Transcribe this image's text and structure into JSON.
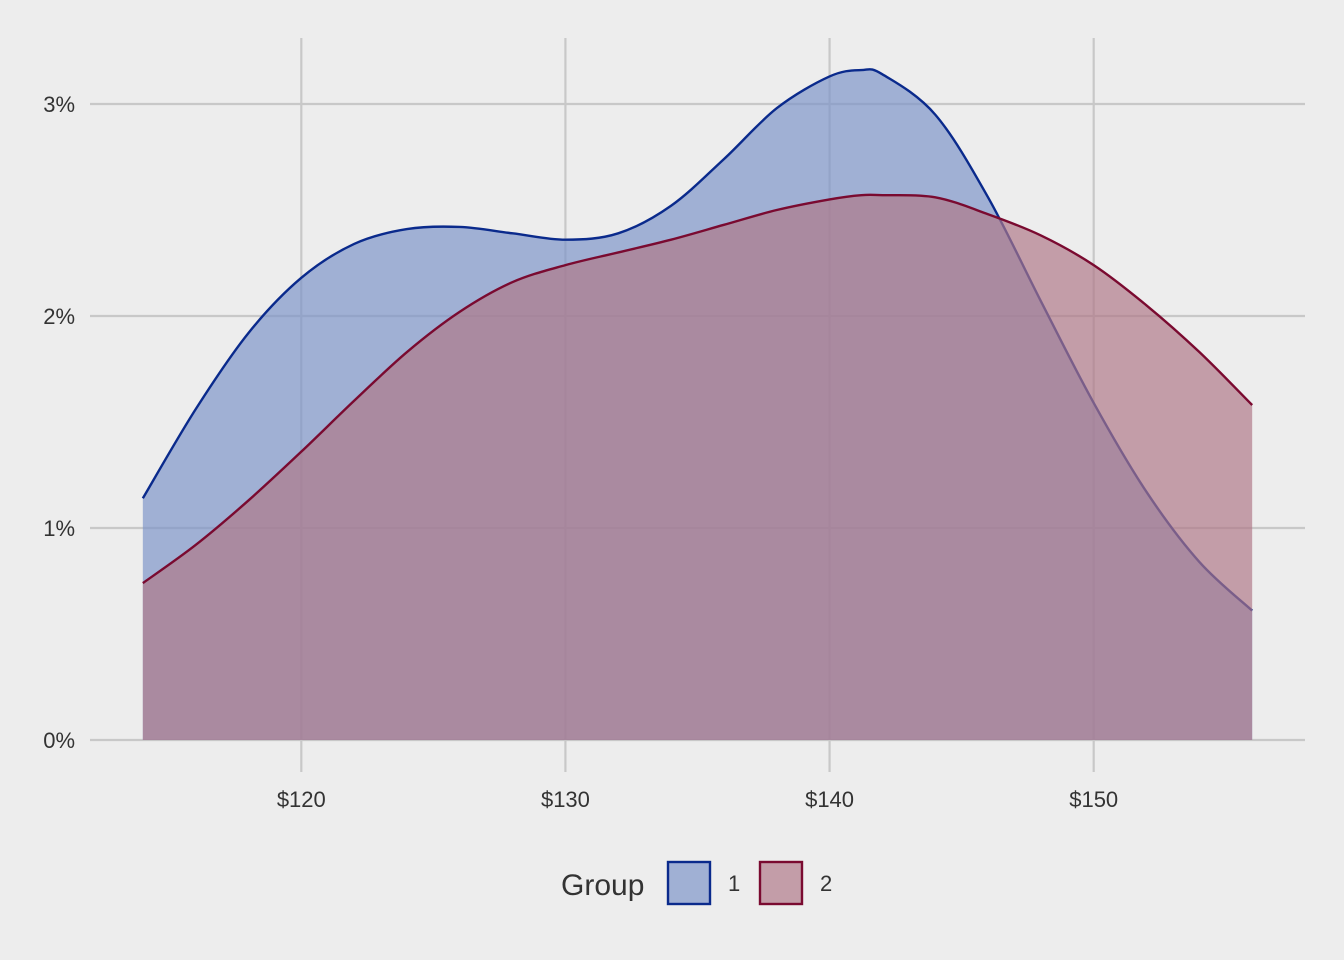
{
  "chart_data": {
    "type": "area",
    "title": "",
    "xlabel": "",
    "ylabel": "",
    "x_range": [
      112,
      158
    ],
    "y_range": [
      0,
      3.2
    ],
    "x_ticks": [
      120,
      130,
      140,
      150
    ],
    "x_tick_labels": [
      "$120",
      "$130",
      "$140",
      "$150"
    ],
    "y_ticks": [
      0,
      1,
      2,
      3
    ],
    "y_tick_labels": [
      "0%",
      "1%",
      "2%",
      "3%"
    ],
    "grid": true,
    "legend": {
      "title": "Group",
      "placement": "bottom",
      "entries": [
        "1",
        "2"
      ]
    },
    "x": [
      114,
      116,
      118,
      120,
      122,
      124,
      126,
      128,
      130,
      132,
      134,
      136,
      138,
      140,
      141.2,
      142,
      144,
      146,
      148,
      150,
      152,
      154,
      156
    ],
    "series": [
      {
        "name": "1",
        "color": "#0a2a8c",
        "fill": "#7c93c8",
        "values": [
          1.14,
          1.56,
          1.92,
          2.18,
          2.34,
          2.41,
          2.42,
          2.39,
          2.36,
          2.39,
          2.52,
          2.74,
          2.98,
          3.13,
          3.16,
          3.14,
          2.95,
          2.56,
          2.07,
          1.59,
          1.17,
          0.84,
          0.61
        ]
      },
      {
        "name": "2",
        "color": "#7a0a30",
        "fill": "#b07888",
        "values": [
          0.74,
          0.92,
          1.13,
          1.36,
          1.6,
          1.83,
          2.02,
          2.16,
          2.24,
          2.3,
          2.36,
          2.43,
          2.5,
          2.55,
          2.57,
          2.57,
          2.56,
          2.48,
          2.38,
          2.24,
          2.05,
          1.83,
          1.58
        ]
      }
    ]
  }
}
